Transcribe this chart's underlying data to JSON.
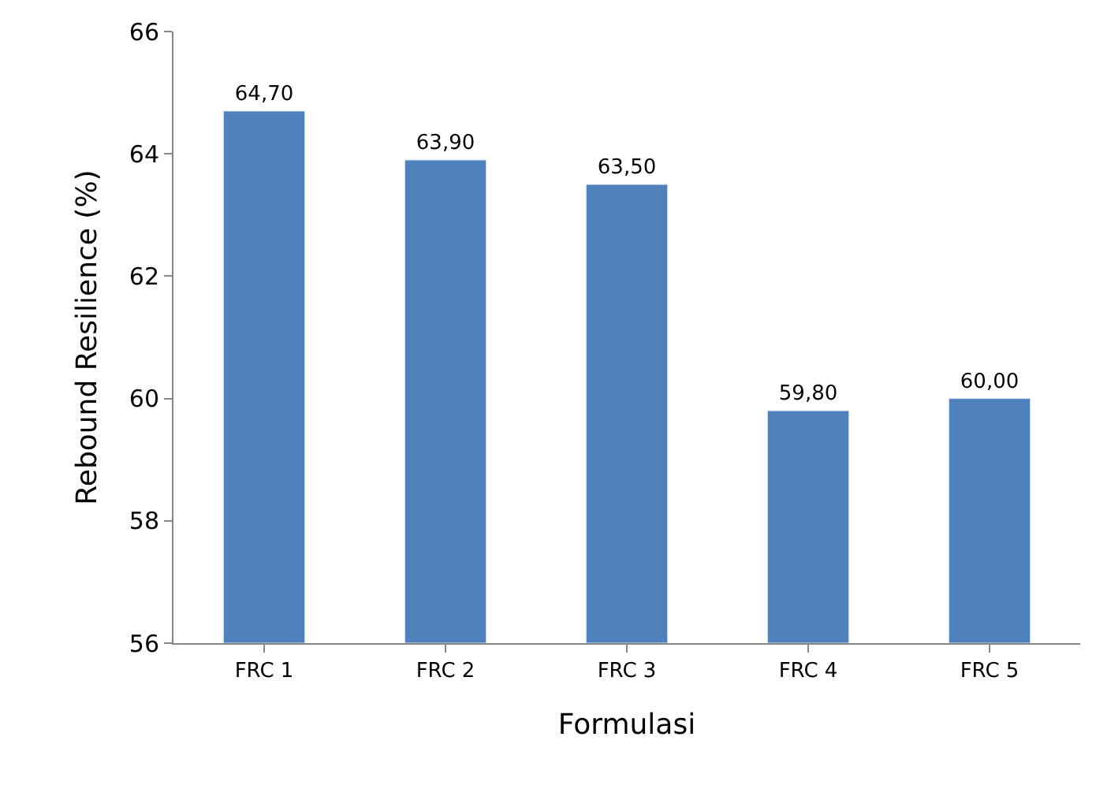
{
  "chart_data": {
    "type": "bar",
    "xlabel": "Formulasi",
    "ylabel": "Rebound Resilience (%)",
    "categories": [
      "FRC 1",
      "FRC 2",
      "FRC 3",
      "FRC 4",
      "FRC 5"
    ],
    "values": [
      64.7,
      63.9,
      63.5,
      59.8,
      60.0
    ],
    "value_labels": [
      "64,70",
      "63,90",
      "63,50",
      "59,80",
      "60,00"
    ],
    "color": "#4f81bd",
    "ylim": [
      56,
      66
    ],
    "yticks": [
      56,
      58,
      60,
      62,
      64,
      66
    ],
    "grid": false,
    "legend": false
  }
}
